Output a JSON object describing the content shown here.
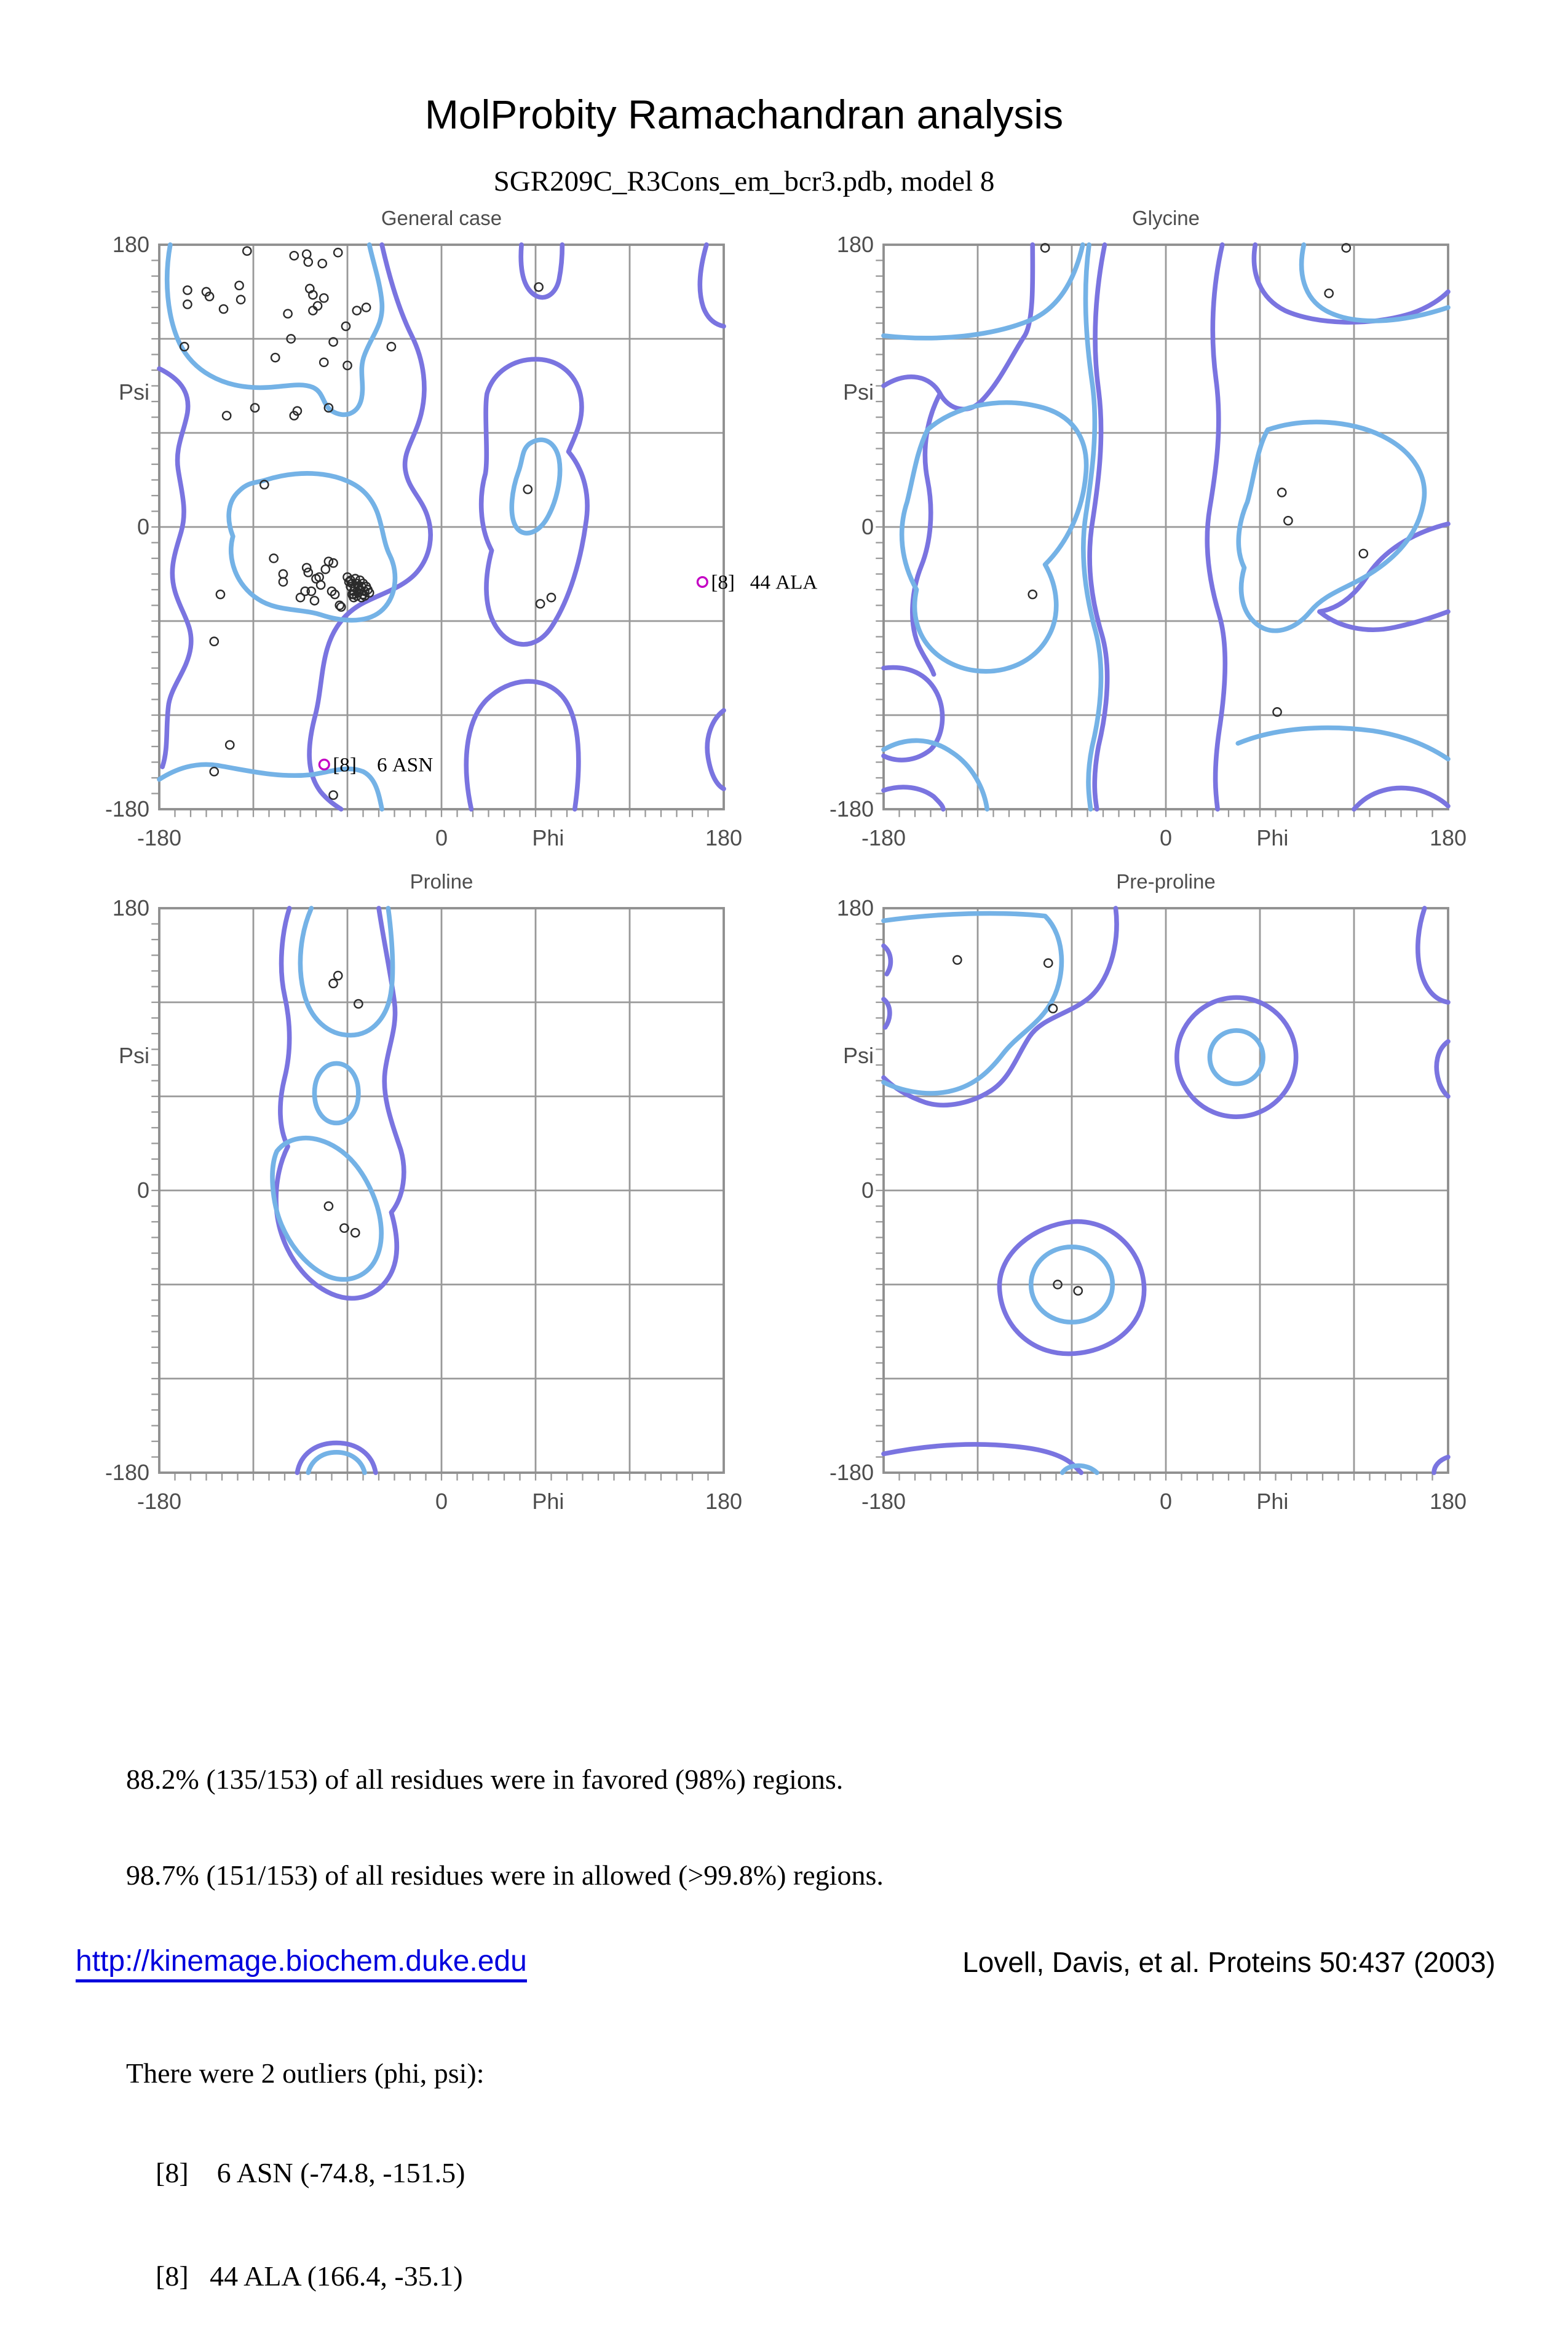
{
  "page": {
    "title": "MolProbity Ramachandran analysis",
    "subtitle": "SGR209C_R3Cons_em_bcr3.pdb, model 8"
  },
  "colors": {
    "favored_contour": "#74b2e6",
    "allowed_contour": "#7a74e0",
    "grid": "#999999",
    "frame": "#8f8f8f",
    "point": "#2b2b2b",
    "outlier": "#c400c4",
    "label": "#4d4d4d",
    "link": "#0000dd"
  },
  "axis": {
    "x_title": "Phi",
    "y_title": "Psi",
    "min": -180,
    "max": 180,
    "grid_step": 60,
    "minor_tick_step": 10,
    "tick_labels": [
      "-180",
      "0",
      "180"
    ]
  },
  "stats": {
    "line1": "88.2% (135/153) of all residues were in favored (98%) regions.",
    "line2": "98.7% (151/153) of all residues were in allowed (>99.8%) regions.",
    "outliers_header": "There were 2 outliers (phi, psi):",
    "outlier_lines": [
      "[8]    6 ASN (-74.8, -151.5)",
      "[8]   44 ALA (166.4, -35.1)"
    ]
  },
  "footer": {
    "link": "http://kinemage.biochem.duke.edu",
    "citation": "Lovell, Davis, et al. Proteins 50:437 (2003)"
  },
  "chart_data": [
    {
      "type": "scatter",
      "title": "General case",
      "xlabel": "Phi",
      "ylabel": "Psi",
      "xlim": [
        -180,
        180
      ],
      "ylim": [
        -180,
        180
      ],
      "grid": true,
      "points": [
        [
          -124,
          176
        ],
        [
          -94,
          173
        ],
        [
          -86,
          174
        ],
        [
          -85,
          169
        ],
        [
          -76,
          168
        ],
        [
          -66,
          175
        ],
        [
          -162,
          151
        ],
        [
          -150,
          150
        ],
        [
          -148,
          147
        ],
        [
          -129,
          154
        ],
        [
          -128,
          145
        ],
        [
          -162,
          142
        ],
        [
          -139,
          139
        ],
        [
          -98,
          136
        ],
        [
          -84,
          152
        ],
        [
          -82,
          148
        ],
        [
          -75,
          146
        ],
        [
          -82,
          138
        ],
        [
          -79,
          141
        ],
        [
          -54,
          138
        ],
        [
          -48,
          140
        ],
        [
          -61,
          128
        ],
        [
          -96,
          120
        ],
        [
          -164,
          115
        ],
        [
          -69,
          118
        ],
        [
          -32,
          115
        ],
        [
          -106,
          108
        ],
        [
          -75,
          105
        ],
        [
          -60,
          103
        ],
        [
          -119,
          76
        ],
        [
          -137,
          71
        ],
        [
          -92,
          74
        ],
        [
          -94,
          71
        ],
        [
          -72,
          76
        ],
        [
          -113,
          27
        ],
        [
          62,
          153
        ],
        [
          55,
          24
        ],
        [
          63,
          -49
        ],
        [
          70,
          -45
        ],
        [
          -107,
          -20
        ],
        [
          -101,
          -30
        ],
        [
          -101,
          -35
        ],
        [
          -86,
          -26
        ],
        [
          -85,
          -29
        ],
        [
          -72,
          -22
        ],
        [
          -69,
          -23
        ],
        [
          -78,
          -32
        ],
        [
          -80,
          -33
        ],
        [
          -74,
          -27
        ],
        [
          -60,
          -32
        ],
        [
          -59,
          -35
        ],
        [
          -77,
          -37
        ],
        [
          -70,
          -41
        ],
        [
          -68,
          -43
        ],
        [
          -87,
          -41
        ],
        [
          -83,
          -41
        ],
        [
          -90,
          -45
        ],
        [
          -81,
          -47
        ],
        [
          -56,
          -43
        ],
        [
          -56,
          -45
        ],
        [
          -65,
          -50
        ],
        [
          -64,
          -51
        ],
        [
          -58,
          -34
        ],
        [
          -55,
          -33
        ],
        [
          -52,
          -34
        ],
        [
          -50,
          -36
        ],
        [
          -57,
          -36
        ],
        [
          -54,
          -36
        ],
        [
          -51,
          -38
        ],
        [
          -48,
          -38
        ],
        [
          -58,
          -38
        ],
        [
          -55,
          -39
        ],
        [
          -52,
          -40
        ],
        [
          -49,
          -41
        ],
        [
          -56,
          -41
        ],
        [
          -53,
          -42
        ],
        [
          -50,
          -43
        ],
        [
          -47,
          -40
        ],
        [
          -54,
          -44
        ],
        [
          -51,
          -45
        ],
        [
          -57,
          -43
        ],
        [
          -53,
          -38
        ],
        [
          -49,
          -44
        ],
        [
          -46,
          -42
        ],
        [
          -141,
          -43
        ],
        [
          -145,
          -73
        ],
        [
          -135,
          -139
        ],
        [
          -145,
          -156
        ],
        [
          -69,
          -171
        ]
      ],
      "outliers": [
        {
          "phi": -74.8,
          "psi": -151.5,
          "annotation": "[8]    6 ASN"
        },
        {
          "phi": 166.4,
          "psi": -35.1,
          "annotation": "[8]   44 ALA"
        }
      ]
    },
    {
      "type": "scatter",
      "title": "Glycine",
      "xlabel": "Phi",
      "ylabel": "Psi",
      "xlim": [
        -180,
        180
      ],
      "ylim": [
        -180,
        180
      ],
      "grid": true,
      "points": [
        [
          -77,
          178
        ],
        [
          115,
          178
        ],
        [
          104,
          149
        ],
        [
          74,
          22
        ],
        [
          78,
          4
        ],
        [
          126,
          -17
        ],
        [
          -85,
          -43
        ],
        [
          71,
          -118
        ]
      ],
      "outliers": []
    },
    {
      "type": "scatter",
      "title": "Proline",
      "xlabel": "Phi",
      "ylabel": "Psi",
      "xlim": [
        -180,
        180
      ],
      "ylim": [
        -180,
        180
      ],
      "grid": true,
      "points": [
        [
          -66,
          137
        ],
        [
          -69,
          132
        ],
        [
          -53,
          119
        ],
        [
          -72,
          -10
        ],
        [
          -62,
          -24
        ],
        [
          -55,
          -27
        ]
      ],
      "outliers": []
    },
    {
      "type": "scatter",
      "title": "Pre-proline",
      "xlabel": "Phi",
      "ylabel": "Psi",
      "xlim": [
        -180,
        180
      ],
      "ylim": [
        -180,
        180
      ],
      "grid": true,
      "points": [
        [
          -133,
          147
        ],
        [
          -75,
          145
        ],
        [
          -72,
          116
        ],
        [
          -69,
          -60
        ],
        [
          -56,
          -64
        ]
      ],
      "outliers": []
    }
  ]
}
